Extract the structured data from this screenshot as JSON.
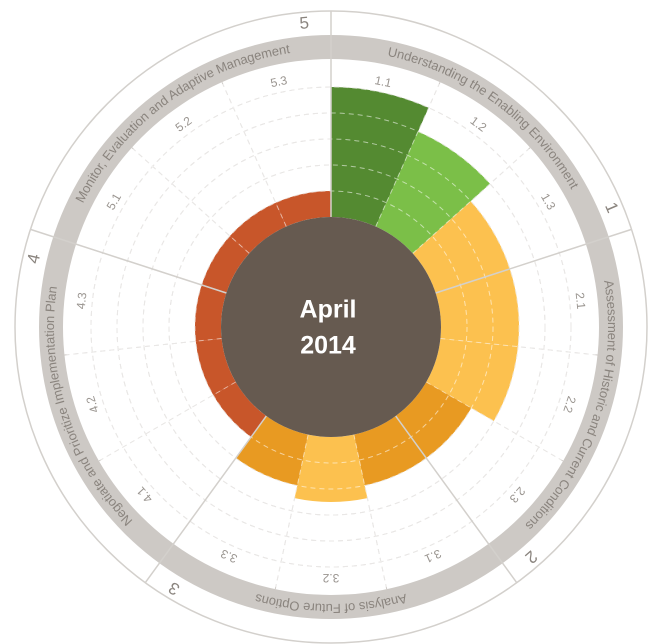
{
  "chart_data": {
    "type": "radial_bar",
    "center_lines": [
      "April",
      "2014"
    ],
    "sections": [
      {
        "number": "1",
        "title": "Understanding the Enabling Environment"
      },
      {
        "number": "2",
        "title": "Assessment of Historic and Current Conditions"
      },
      {
        "number": "3",
        "title": "Analysis of Future Options"
      },
      {
        "number": "4",
        "title": "Negotiate and Prioritize Implementation Plan"
      },
      {
        "number": "5",
        "title": "Monitor, Evaluation and Adaptive Management"
      }
    ],
    "categories": [
      "1.1",
      "1.2",
      "1.3",
      "2.1",
      "2.2",
      "2.3",
      "3.1",
      "3.2",
      "3.3",
      "4.1",
      "4.2",
      "4.3",
      "5.1",
      "5.2",
      "5.3"
    ],
    "values": [
      5,
      4,
      3,
      3,
      3,
      2,
      2,
      2.5,
      2,
      1,
      1,
      1,
      1,
      1,
      1
    ],
    "colors": [
      "#548a31",
      "#7bbf48",
      "#fcc14f",
      "#fcc14f",
      "#fcc14f",
      "#e89a22",
      "#e89a22",
      "#fcc14f",
      "#e89a22",
      "#c8562a",
      "#c8562a",
      "#c8562a",
      "#c8562a",
      "#c8562a",
      "#c8562a"
    ],
    "rlim": [
      0,
      6
    ],
    "rticks": [
      1,
      2,
      3,
      4,
      5
    ],
    "grid": true
  }
}
